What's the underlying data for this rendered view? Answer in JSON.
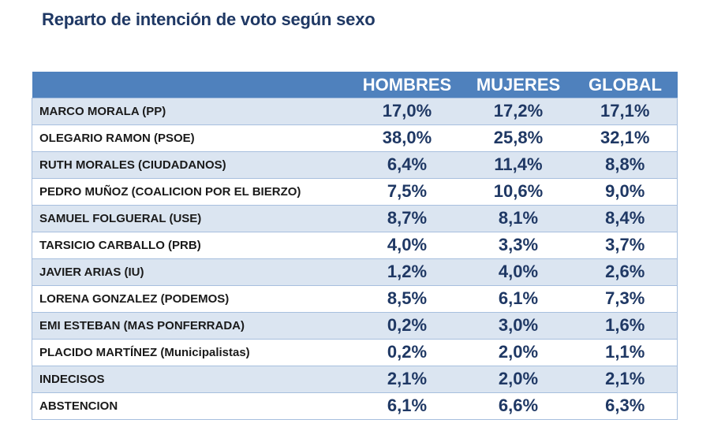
{
  "title": "Reparto de intención de voto según sexo",
  "colors": {
    "title": "#1f3864",
    "header_bg": "#4f81bd",
    "header_text": "#ffffff",
    "row_alt_bg": "#dbe5f1",
    "row_bg": "#ffffff",
    "value_text": "#1f3864",
    "border": "#a7bfde"
  },
  "table": {
    "headers": [
      "",
      "HOMBRES",
      "MUJERES",
      "GLOBAL"
    ],
    "rows": [
      {
        "name": "MARCO MORALA (PP)",
        "hombres": "17,0%",
        "mujeres": "17,2%",
        "global": "17,1%"
      },
      {
        "name": "OLEGARIO RAMON (PSOE)",
        "hombres": "38,0%",
        "mujeres": "25,8%",
        "global": "32,1%"
      },
      {
        "name": "RUTH MORALES (CIUDADANOS)",
        "hombres": "6,4%",
        "mujeres": "11,4%",
        "global": "8,8%"
      },
      {
        "name": "PEDRO MUÑOZ (COALICION POR EL BIERZO)",
        "hombres": "7,5%",
        "mujeres": "10,6%",
        "global": "9,0%"
      },
      {
        "name": "SAMUEL FOLGUERAL (USE)",
        "hombres": "8,7%",
        "mujeres": "8,1%",
        "global": "8,4%"
      },
      {
        "name": "TARSICIO CARBALLO (PRB)",
        "hombres": "4,0%",
        "mujeres": "3,3%",
        "global": "3,7%"
      },
      {
        "name": "JAVIER ARIAS (IU)",
        "hombres": "1,2%",
        "mujeres": "4,0%",
        "global": "2,6%"
      },
      {
        "name": "LORENA GONZALEZ (PODEMOS)",
        "hombres": "8,5%",
        "mujeres": "6,1%",
        "global": "7,3%"
      },
      {
        "name": "EMI ESTEBAN (MAS PONFERRADA)",
        "hombres": "0,2%",
        "mujeres": "3,0%",
        "global": "1,6%"
      },
      {
        "name": "PLACIDO MARTÍNEZ (Municipalistas)",
        "hombres": "0,2%",
        "mujeres": "2,0%",
        "global": "1,1%"
      },
      {
        "name": "INDECISOS",
        "hombres": "2,1%",
        "mujeres": "2,0%",
        "global": "2,1%"
      },
      {
        "name": "ABSTENCION",
        "hombres": "6,1%",
        "mujeres": "6,6%",
        "global": "6,3%"
      }
    ]
  }
}
